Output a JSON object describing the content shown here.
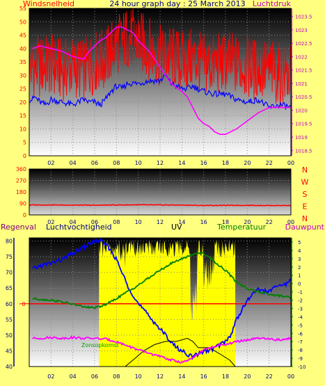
{
  "colors": {
    "background": "#ffff80",
    "wind_gust": "#ff0000",
    "wind_avg": "#0000ff",
    "pressure": "#ff00ff",
    "direction": "#ff0000",
    "humidity": "#0000ff",
    "temperature": "#008000",
    "dewpoint": "#ff00ff",
    "uv": "#000000",
    "daylight": "#ffff00",
    "rain": "#ff0000",
    "label_red": "#ff0000",
    "label_blue": "#000080",
    "label_magenta": "#c000c0",
    "label_green": "#008000",
    "label_purple": "#800080"
  },
  "chart_data": [
    {
      "type": "line",
      "title": "24 hour graph day : 25 March 2013",
      "xlabel": "",
      "x_ticks": [
        "02",
        "04",
        "06",
        "08",
        "10",
        "12",
        "14",
        "16",
        "18",
        "20",
        "22",
        "00"
      ],
      "left_axis_label": "Windsnelheid",
      "right_axis_label": "Luchtdruk",
      "ylim_left": [
        0,
        55
      ],
      "ylim_right": [
        1018.3,
        1023.8
      ],
      "y_ticks_left": [
        "0",
        "5",
        "10",
        "15",
        "20",
        "25",
        "30",
        "35",
        "40",
        "45",
        "50",
        "55"
      ],
      "y_ticks_right": [
        "1018.5",
        "1019",
        "1019.5",
        "1020",
        "1020.5",
        "1021",
        "1021.5",
        "1022",
        "1022.5",
        "1023",
        "1023.5"
      ],
      "grid": true,
      "series": [
        {
          "axis": "left",
          "style": "gust",
          "x": [
            1,
            2,
            3,
            4,
            5,
            6,
            7,
            8,
            9,
            10,
            11,
            12,
            13,
            14,
            15,
            16,
            17,
            18,
            19,
            20,
            21,
            22,
            23,
            24
          ],
          "values": [
            33,
            34,
            32,
            33,
            32,
            35,
            36,
            42,
            44,
            43,
            40,
            37,
            37,
            35,
            36,
            34,
            34,
            35,
            34,
            33,
            32,
            32,
            30,
            30
          ]
        },
        {
          "axis": "left",
          "style": "line",
          "x": [
            0.3,
            0.5,
            1,
            1.5,
            2,
            3,
            4,
            5,
            5.5,
            6,
            6.5,
            7,
            7.5,
            8,
            8.5,
            9,
            10,
            11,
            12,
            12.5,
            13,
            13.5,
            14,
            14.5,
            15,
            15.5,
            16,
            17,
            18,
            19,
            20,
            21,
            22,
            23,
            24
          ],
          "values": [
            21,
            22,
            20,
            19,
            21,
            20,
            19,
            21,
            20,
            20,
            19,
            21,
            24,
            26,
            25,
            27,
            27,
            28,
            28,
            30,
            27,
            26,
            25,
            25,
            26,
            25,
            24,
            23,
            23,
            21,
            20,
            21,
            18,
            19,
            18
          ]
        },
        {
          "axis": "right",
          "style": "line",
          "x": [
            0.3,
            1,
            2,
            3,
            4,
            5,
            5.5,
            6,
            6.5,
            7,
            7.5,
            8,
            8.5,
            9,
            9.5,
            10,
            11,
            12,
            13,
            14,
            14.5,
            15,
            15.5,
            16,
            16.5,
            17,
            17.5,
            18,
            19,
            20,
            21,
            22,
            23,
            24
          ],
          "values": [
            1022.3,
            1022.4,
            1022.3,
            1022.2,
            1022.0,
            1021.9,
            1022.2,
            1022.4,
            1022.6,
            1022.7,
            1022.9,
            1023.1,
            1023.1,
            1023.0,
            1022.9,
            1022.6,
            1022.2,
            1021.6,
            1021.0,
            1020.7,
            1020.5,
            1020.1,
            1019.7,
            1019.5,
            1019.4,
            1019.2,
            1019.1,
            1019.1,
            1019.3,
            1019.6,
            1019.9,
            1020.1,
            1020.1,
            1020.1
          ]
        }
      ]
    },
    {
      "type": "line",
      "title": "",
      "x_ticks": [
        "02",
        "04",
        "06",
        "08",
        "10",
        "12",
        "14",
        "16",
        "18",
        "20",
        "22",
        "00"
      ],
      "ylim_left": [
        0,
        360
      ],
      "y_ticks_left": [
        "0",
        "90",
        "180",
        "270",
        "360"
      ],
      "right_letters": [
        "N",
        "W",
        "S",
        "E",
        "N"
      ],
      "grid": true,
      "series": [
        {
          "axis": "left",
          "style": "line",
          "x": [
            0.3,
            2,
            4,
            6,
            8,
            10,
            12,
            14,
            16,
            18,
            20,
            22,
            24
          ],
          "values": [
            78,
            78,
            77,
            76,
            78,
            79,
            78,
            77,
            74,
            75,
            75,
            74,
            74
          ]
        }
      ]
    },
    {
      "type": "line",
      "title": "",
      "labels": {
        "rain": "Regenval",
        "humidity": "Luchtvochtigheid",
        "uv": "UV",
        "temperature": "Temperatuur",
        "dewpoint": "Dauwpunt",
        "sunrise": "Zonsopkomst"
      },
      "x_ticks": [
        "02",
        "04",
        "06",
        "08",
        "10",
        "12",
        "14",
        "16",
        "18",
        "20",
        "22",
        "00"
      ],
      "ylim_left": [
        40,
        81
      ],
      "ylim_right": [
        -10,
        5.5
      ],
      "y_ticks_left": [
        "40",
        "45",
        "50",
        "55",
        "60",
        "65",
        "70",
        "75",
        "80"
      ],
      "y_ticks_right": [
        "-10",
        "-9",
        "-8",
        "-7",
        "-6",
        "-5",
        "-4",
        "-3",
        "-2",
        "-1",
        "0",
        "1",
        "2",
        "3",
        "4",
        "5"
      ],
      "rain_axis_tick": "0",
      "rain_value": 0,
      "sunrise_hour": 6.4,
      "sunset_hour": 18.9,
      "grid": true,
      "series": [
        {
          "name": "Luchtvochtigheid",
          "axis": "left",
          "style": "line",
          "x": [
            0.3,
            1,
            2,
            3,
            4,
            4.5,
            5,
            5.5,
            6,
            6.5,
            7,
            7.5,
            8,
            8.5,
            9,
            9.5,
            10,
            10.5,
            11,
            11.5,
            12,
            12.5,
            13,
            13.5,
            14,
            14.5,
            15,
            15.5,
            16,
            16.5,
            17,
            17.5,
            18,
            18.5,
            19,
            19.5,
            20,
            20.5,
            21,
            21.5,
            22,
            22.5,
            23,
            23.5,
            24
          ],
          "values": [
            71,
            72,
            73,
            74,
            76,
            77,
            78,
            79,
            80,
            80,
            79,
            77,
            74,
            70,
            66,
            63,
            60,
            58,
            56,
            54,
            52,
            50,
            48,
            46,
            45,
            44,
            43,
            44,
            45,
            45,
            46,
            47,
            48,
            50,
            55,
            58,
            61,
            63,
            65,
            64,
            64,
            65,
            66,
            66,
            68
          ]
        },
        {
          "name": "UV",
          "axis": "left",
          "style": "uv",
          "x": [
            6.4,
            8,
            8.8,
            9.5,
            10.5,
            11.5,
            12.5,
            13.5,
            14.5,
            15,
            15.5,
            16.5,
            17.5,
            18.4,
            18.9
          ],
          "values": [
            40,
            40,
            40,
            42,
            45,
            47,
            48,
            48,
            49,
            48,
            46,
            46,
            44,
            42,
            40
          ]
        },
        {
          "name": "Temperatuur",
          "axis": "right",
          "style": "line",
          "x": [
            0.3,
            1,
            2,
            3,
            4,
            5,
            5.5,
            6,
            6.5,
            7,
            7.5,
            8,
            9,
            10,
            11,
            12,
            13,
            14,
            15,
            15.5,
            16,
            16.5,
            17,
            18,
            19,
            20,
            21,
            22,
            23,
            24
          ],
          "values": [
            -1.8,
            -1.9,
            -2.0,
            -2.2,
            -2.5,
            -2.8,
            -2.9,
            -2.9,
            -2.8,
            -2.5,
            -2.2,
            -1.8,
            -1.0,
            -0.2,
            0.7,
            1.6,
            2.4,
            3.0,
            3.5,
            3.7,
            3.6,
            3.2,
            2.6,
            1.6,
            0.2,
            -0.6,
            -1.0,
            -1.3,
            -1.5,
            -1.7
          ]
        },
        {
          "name": "Dauwpunt",
          "axis": "right",
          "style": "line",
          "x": [
            0.3,
            1,
            2,
            3,
            4,
            5,
            6,
            7,
            8,
            9,
            10,
            11,
            12,
            13,
            14,
            14.5,
            15,
            15.5,
            16,
            17,
            18,
            18.5,
            19,
            20,
            21,
            22,
            23,
            24
          ],
          "values": [
            -6.6,
            -6.6,
            -6.5,
            -6.6,
            -6.5,
            -6.6,
            -6.6,
            -6.7,
            -7.0,
            -7.5,
            -8.0,
            -8.4,
            -8.8,
            -9.2,
            -9.5,
            -9.3,
            -9.0,
            -8.5,
            -8.0,
            -7.6,
            -7.3,
            -7.2,
            -7.0,
            -6.8,
            -6.6,
            -6.7,
            -6.8,
            -6.6
          ]
        }
      ]
    }
  ]
}
